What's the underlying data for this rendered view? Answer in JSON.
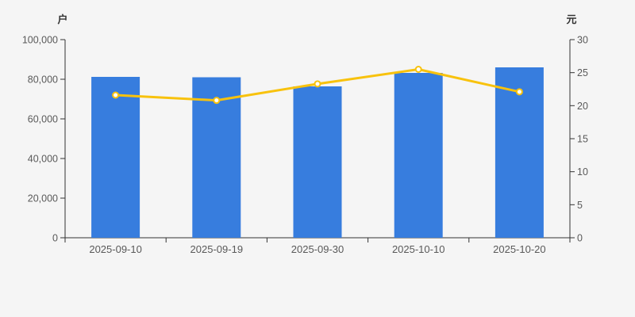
{
  "page": {
    "background_color": "#f5f5f5",
    "axis_line_color": "#333333",
    "tick_label_color": "#595959"
  },
  "chart_data": {
    "type": "bar",
    "subtype": "bar-plus-line-dual-axis",
    "categories": [
      "2025-09-10",
      "2025-09-19",
      "2025-09-30",
      "2025-10-10",
      "2025-10-20"
    ],
    "series": [
      {
        "type": "bar",
        "axis": "left",
        "unit": "户",
        "color": "#377dde",
        "values": [
          81200,
          81000,
          76400,
          83200,
          86000
        ]
      },
      {
        "type": "line",
        "axis": "right",
        "unit": "元",
        "color": "#f8c20d",
        "marker_fill": "#ffffff",
        "values": [
          21.6,
          20.8,
          23.3,
          25.5,
          22.1
        ]
      }
    ],
    "left_axis": {
      "label": "户",
      "min": 0,
      "max": 100000,
      "step": 20000,
      "tick_labels": [
        "0",
        "20,000",
        "40,000",
        "60,000",
        "80,000",
        "100,000"
      ]
    },
    "right_axis": {
      "label": "元",
      "min": 0,
      "max": 30,
      "step": 5,
      "tick_labels": [
        "0",
        "5",
        "10",
        "15",
        "20",
        "25",
        "30"
      ]
    },
    "grid": false,
    "legend": "none",
    "title": ""
  }
}
